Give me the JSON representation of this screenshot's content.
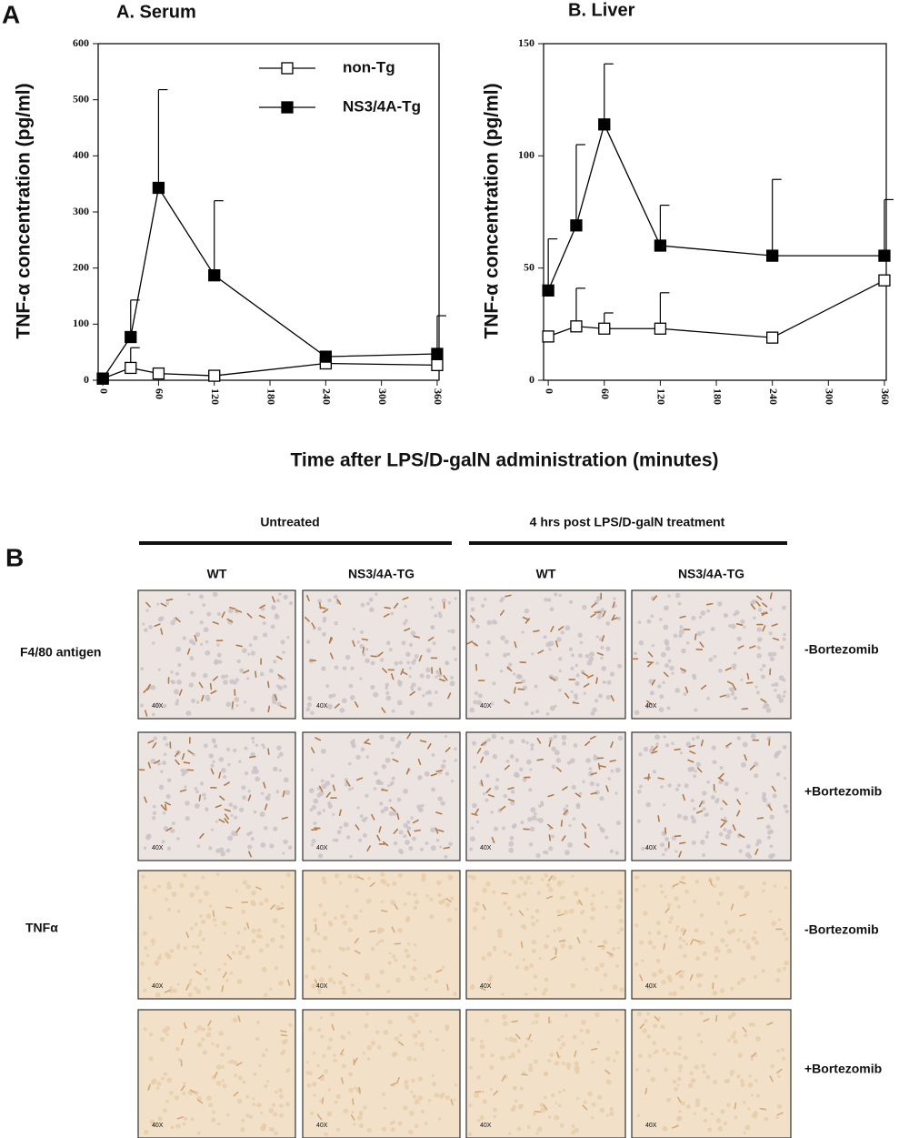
{
  "panel_a": "A",
  "panel_b": "B",
  "shared_xlabel": "Time after LPS/D-galN administration (minutes)",
  "chart_data": [
    {
      "type": "line",
      "title": "A. Serum",
      "ylabel": "TNF-α concentration (pg/ml)",
      "x": [
        0,
        30,
        60,
        120,
        240,
        360
      ],
      "xlim": [
        -5,
        362
      ],
      "xticks": [
        0,
        60,
        120,
        180,
        240,
        300,
        360
      ],
      "ylim": [
        0,
        600
      ],
      "yticks": [
        0,
        100,
        200,
        300,
        400,
        500,
        600
      ],
      "legend": "upper right",
      "series": [
        {
          "name": "non-Tg",
          "color": "#000000",
          "marker": "open",
          "values": [
            3,
            22,
            12,
            8,
            30,
            27
          ],
          "errors": [
            null,
            36,
            null,
            null,
            null,
            null
          ]
        },
        {
          "name": "NS3/4A-Tg",
          "color": "#000000",
          "marker": "filled",
          "values": [
            3,
            77,
            343,
            187,
            42,
            47
          ],
          "errors": [
            null,
            66,
            175,
            133,
            null,
            68
          ]
        }
      ]
    },
    {
      "type": "line",
      "title": "B. Liver",
      "ylabel": "TNF-α concentration (pg/ml)",
      "x": [
        0,
        30,
        60,
        120,
        240,
        360
      ],
      "xlim": [
        -5,
        362
      ],
      "xticks": [
        0,
        60,
        120,
        180,
        240,
        300,
        360
      ],
      "ylim": [
        0,
        150
      ],
      "yticks": [
        0,
        50,
        100,
        150
      ],
      "series": [
        {
          "color": "#000000",
          "marker": "open",
          "values": [
            19.5,
            24,
            23,
            23,
            19,
            44.5
          ],
          "errors": [
            null,
            17,
            7,
            16,
            null,
            null
          ]
        },
        {
          "color": "#000000",
          "marker": "filled",
          "values": [
            40,
            69,
            114,
            60,
            55.5,
            55.5
          ],
          "errors": [
            23,
            36,
            27,
            18,
            34,
            25
          ]
        }
      ]
    }
  ],
  "micrographs": {
    "groups": [
      "Untreated",
      "4 hrs post LPS/D-galN treatment"
    ],
    "columns": [
      "WT",
      "NS3/4A-TG",
      "WT",
      "NS3/4A-TG"
    ],
    "stains": [
      "F4/80 antigen",
      "TNFα"
    ],
    "treatments": [
      "-Bortezomib",
      "+Bortezomib",
      "-Bortezomib",
      "+Bortezomib"
    ],
    "magnification": "40X"
  }
}
